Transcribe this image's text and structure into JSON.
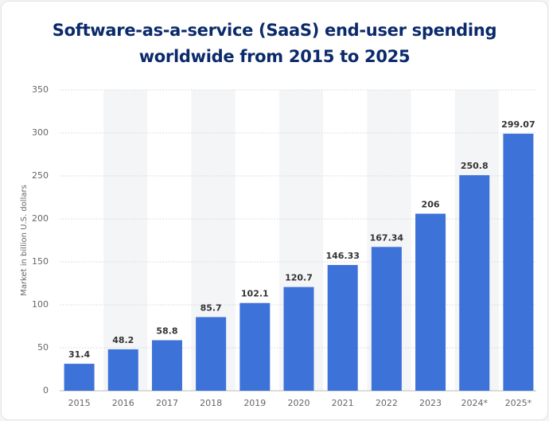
{
  "chart_data": {
    "type": "bar",
    "title": "Software-as-a-service (SaaS) end-user spending worldwide from 2015 to 2025",
    "y_label": "Market in billion U.S. dollars",
    "categories": [
      "2015",
      "2016",
      "2017",
      "2018",
      "2019",
      "2020",
      "2021",
      "2022",
      "2023",
      "2024*",
      "2025*"
    ],
    "values": [
      31.4,
      48.2,
      58.8,
      85.7,
      102.1,
      120.7,
      146.33,
      167.34,
      206,
      250.8,
      299.07
    ],
    "color": "#3d72d9",
    "ylim": [
      0,
      350
    ],
    "yticks": [
      0,
      50,
      100,
      150,
      200,
      250,
      300,
      350
    ],
    "grid": true
  }
}
